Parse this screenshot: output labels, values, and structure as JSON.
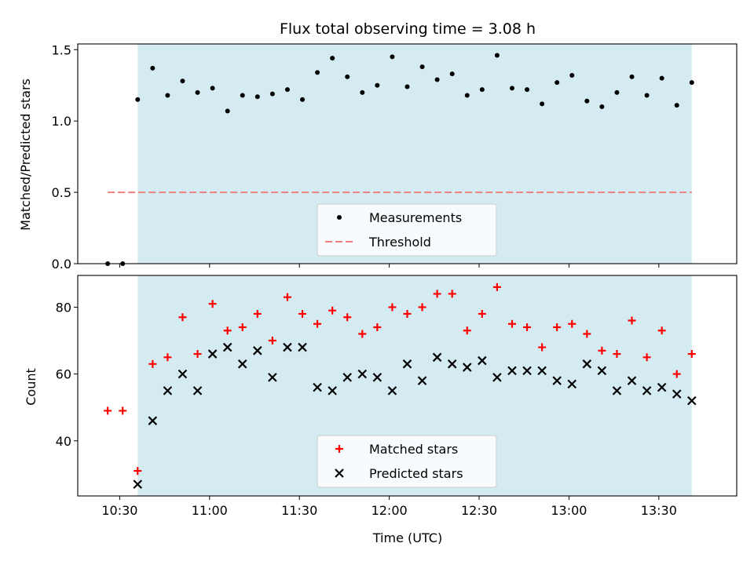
{
  "chart_data": [
    {
      "type": "scatter",
      "title": "Flux total observing time = 3.08 h",
      "xlabel": "",
      "ylabel": "Matched/Predicted stars",
      "ylim": [
        0,
        1.54
      ],
      "yticks": [
        "0.0",
        "0.5",
        "1.0",
        "1.5"
      ],
      "shaded_span": [
        "10:36",
        "13:41"
      ],
      "shade_color": "#add8e6",
      "legend_position": "bottom-center",
      "series": [
        {
          "name": "Measurements",
          "color": "#000000",
          "marker": "dot",
          "x": [
            "10:26",
            "10:31",
            "10:36",
            "10:41",
            "10:46",
            "10:51",
            "10:56",
            "11:01",
            "11:06",
            "11:11",
            "11:16",
            "11:21",
            "11:26",
            "11:31",
            "11:36",
            "11:41",
            "11:46",
            "11:51",
            "11:56",
            "12:01",
            "12:06",
            "12:11",
            "12:16",
            "12:21",
            "12:26",
            "12:31",
            "12:36",
            "12:41",
            "12:46",
            "12:51",
            "12:56",
            "13:01",
            "13:06",
            "13:11",
            "13:16",
            "13:21",
            "13:26",
            "13:31",
            "13:36",
            "13:41"
          ],
          "y": [
            0.0,
            0.0,
            1.15,
            1.37,
            1.18,
            1.28,
            1.2,
            1.23,
            1.07,
            1.18,
            1.17,
            1.19,
            1.22,
            1.15,
            1.34,
            1.44,
            1.31,
            1.2,
            1.25,
            1.45,
            1.24,
            1.38,
            1.29,
            1.33,
            1.18,
            1.22,
            1.46,
            1.23,
            1.22,
            1.12,
            1.27,
            1.32,
            1.14,
            1.1,
            1.2,
            1.31,
            1.18,
            1.3,
            1.11,
            1.27
          ]
        },
        {
          "name": "Threshold",
          "color": "#f08080",
          "style": "dashed",
          "x": [
            "10:26",
            "13:41"
          ],
          "y": [
            0.5,
            0.5
          ]
        }
      ]
    },
    {
      "type": "scatter",
      "title": "",
      "xlabel": "Time (UTC)",
      "ylabel": "Count",
      "ylim": [
        23.5,
        89.5
      ],
      "yticks": [
        "40",
        "60",
        "80"
      ],
      "xticks": [
        "10:30",
        "11:00",
        "11:30",
        "12:00",
        "12:30",
        "13:00",
        "13:30"
      ],
      "shaded_span": [
        "10:36",
        "13:41"
      ],
      "shade_color": "#add8e6",
      "legend_position": "bottom-center",
      "series": [
        {
          "name": "Matched stars",
          "color": "#ff0000",
          "marker": "plus",
          "x": [
            "10:26",
            "10:31",
            "10:36",
            "10:41",
            "10:46",
            "10:51",
            "10:56",
            "11:01",
            "11:06",
            "11:11",
            "11:16",
            "11:21",
            "11:26",
            "11:31",
            "11:36",
            "11:41",
            "11:46",
            "11:51",
            "11:56",
            "12:01",
            "12:06",
            "12:11",
            "12:16",
            "12:21",
            "12:26",
            "12:31",
            "12:36",
            "12:41",
            "12:46",
            "12:51",
            "12:56",
            "13:01",
            "13:06",
            "13:11",
            "13:16",
            "13:21",
            "13:26",
            "13:31",
            "13:36",
            "13:41"
          ],
          "y": [
            49,
            49,
            31,
            63,
            65,
            77,
            66,
            81,
            73,
            74,
            78,
            70,
            83,
            78,
            75,
            79,
            77,
            72,
            74,
            80,
            78,
            80,
            84,
            84,
            73,
            78,
            86,
            75,
            74,
            68,
            74,
            75,
            72,
            67,
            66,
            76,
            65,
            73,
            60,
            66
          ]
        },
        {
          "name": "Predicted stars",
          "color": "#000000",
          "marker": "x",
          "x": [
            "10:36",
            "10:41",
            "10:46",
            "10:51",
            "10:56",
            "11:01",
            "11:06",
            "11:11",
            "11:16",
            "11:21",
            "11:26",
            "11:31",
            "11:36",
            "11:41",
            "11:46",
            "11:51",
            "11:56",
            "12:01",
            "12:06",
            "12:11",
            "12:16",
            "12:21",
            "12:26",
            "12:31",
            "12:36",
            "12:41",
            "12:46",
            "12:51",
            "12:56",
            "13:01",
            "13:06",
            "13:11",
            "13:16",
            "13:21",
            "13:26",
            "13:31",
            "13:36",
            "13:41"
          ],
          "y": [
            27,
            46,
            55,
            60,
            55,
            66,
            68,
            63,
            67,
            59,
            68,
            68,
            56,
            55,
            59,
            60,
            59,
            55,
            63,
            58,
            65,
            63,
            62,
            64,
            59,
            61,
            61,
            61,
            58,
            57,
            63,
            61,
            55,
            58,
            55,
            56,
            54,
            52
          ]
        }
      ]
    }
  ]
}
